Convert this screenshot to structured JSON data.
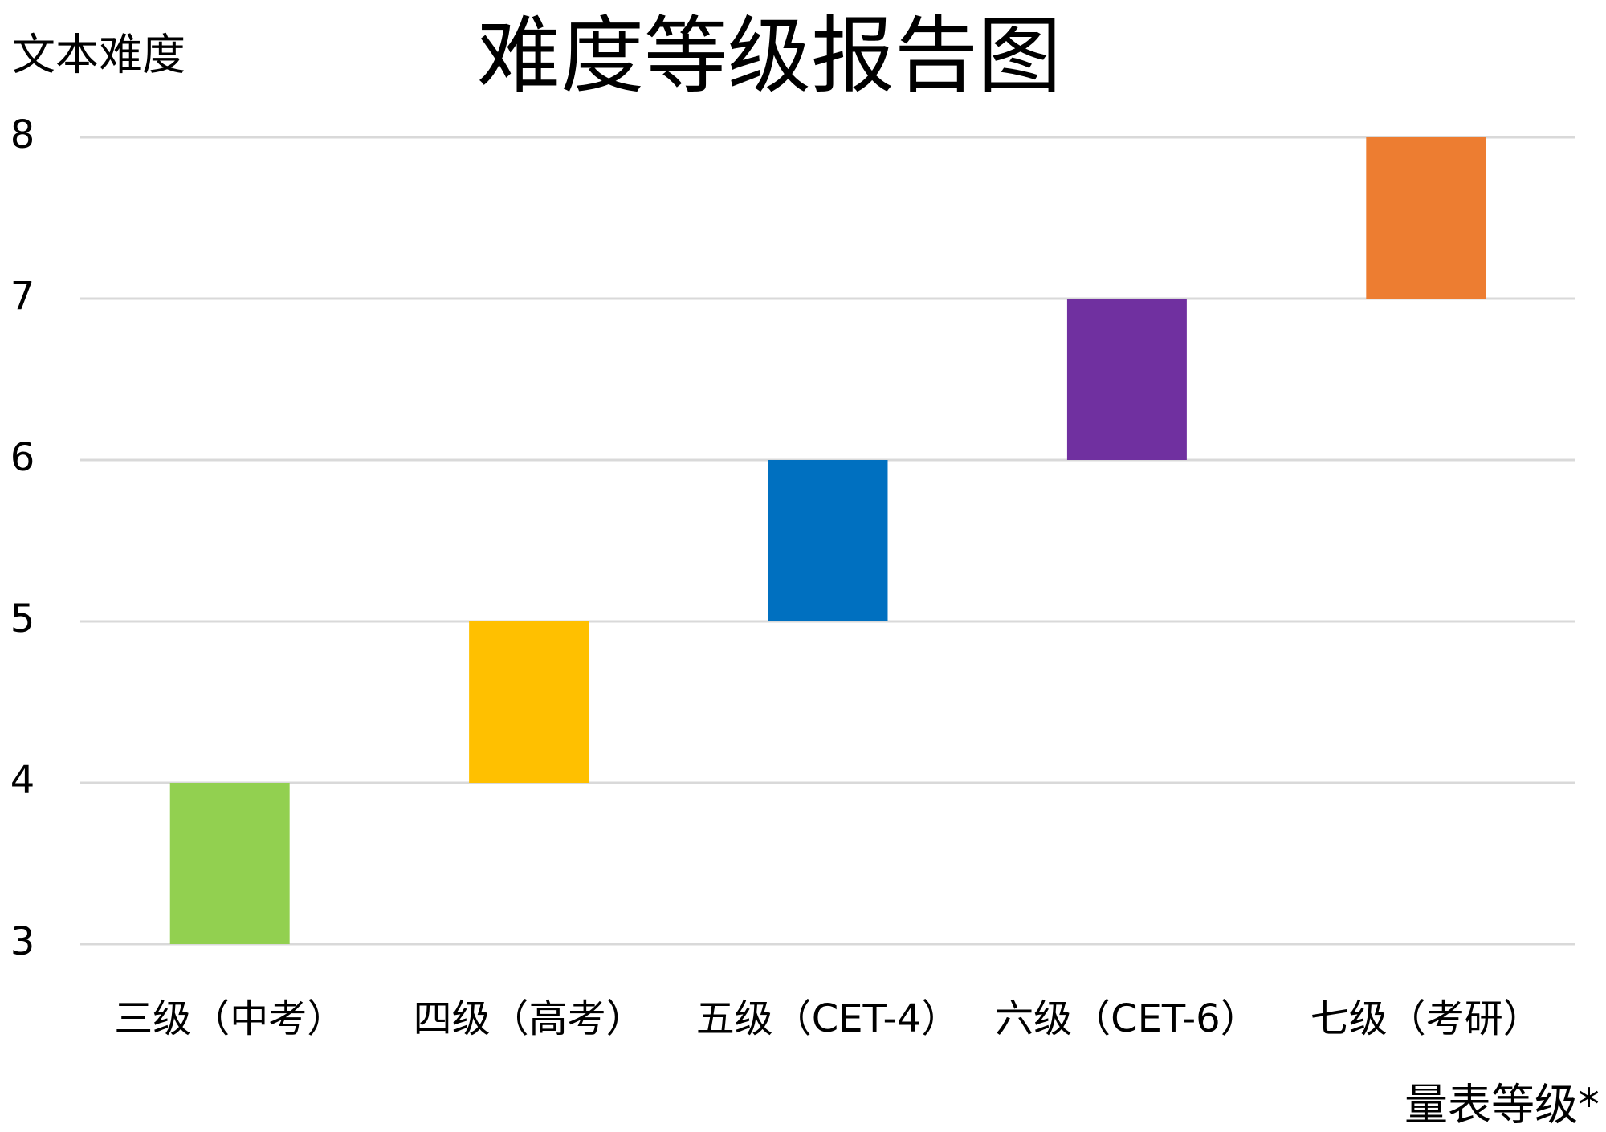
{
  "chart_data": {
    "type": "floating-bar",
    "title": "难度等级报告图",
    "ylabel": "文本难度",
    "xlabel": "量表等级*",
    "categories": [
      "三级（中考）",
      "四级（高考）",
      "五级（CET-4）",
      "六级（CET-6）",
      "七级（考研）"
    ],
    "low": [
      3,
      4,
      5,
      6,
      7
    ],
    "high": [
      4,
      5,
      6,
      7,
      8
    ],
    "colors": [
      "#92d050",
      "#ffc000",
      "#0070c0",
      "#7030a0",
      "#ed7d31"
    ],
    "ylim": [
      3,
      8
    ],
    "yticks": [
      3,
      4,
      5,
      6,
      7,
      8
    ],
    "grid": true
  }
}
